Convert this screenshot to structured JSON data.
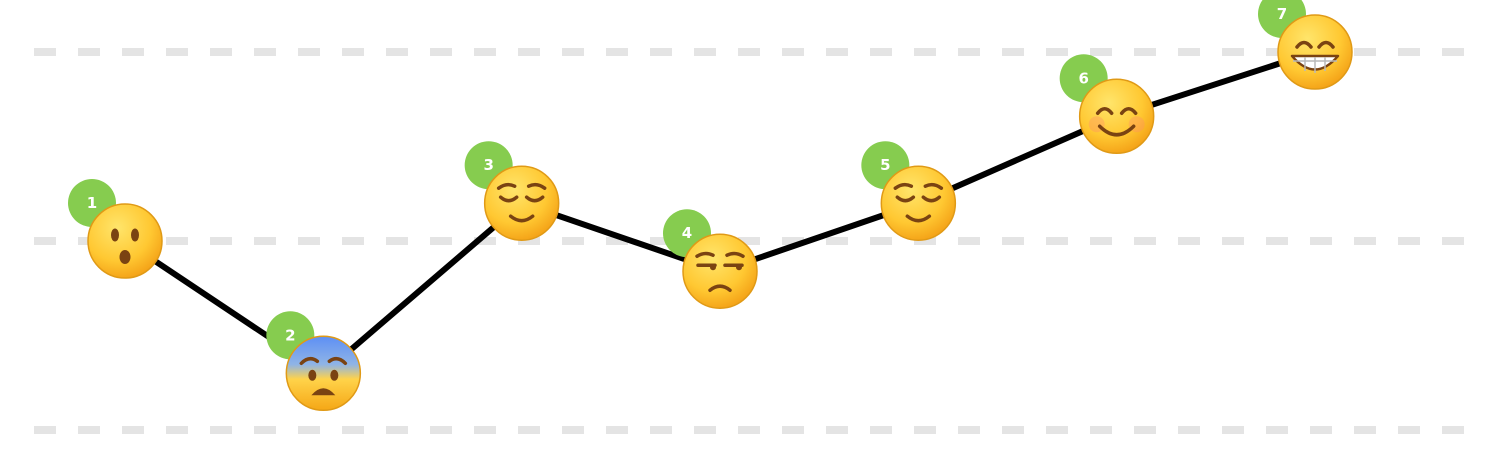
{
  "chart_data": {
    "type": "line",
    "title": "",
    "xlabel": "",
    "ylabel": "",
    "ylim": [
      0,
      2
    ],
    "grid": true,
    "gridlines": [
      0,
      1,
      2
    ],
    "colors": {
      "line": "#000000",
      "badge": "#86cc4f",
      "gridline": "#e4e4e4",
      "emoji_face": "#ffc832",
      "emoji_fear": "#5d8ff5"
    },
    "points": [
      {
        "label": "1",
        "value": 1.0,
        "icon": "hushed-face-icon"
      },
      {
        "label": "2",
        "value": 0.3,
        "icon": "fearful-face-icon"
      },
      {
        "label": "3",
        "value": 1.2,
        "icon": "relieved-face-icon"
      },
      {
        "label": "4",
        "value": 0.84,
        "icon": "unamused-face-icon"
      },
      {
        "label": "5",
        "value": 1.2,
        "icon": "relieved-face-icon"
      },
      {
        "label": "6",
        "value": 1.66,
        "icon": "smiling-face-icon"
      },
      {
        "label": "7",
        "value": 2.0,
        "icon": "grinning-face-icon"
      }
    ]
  }
}
